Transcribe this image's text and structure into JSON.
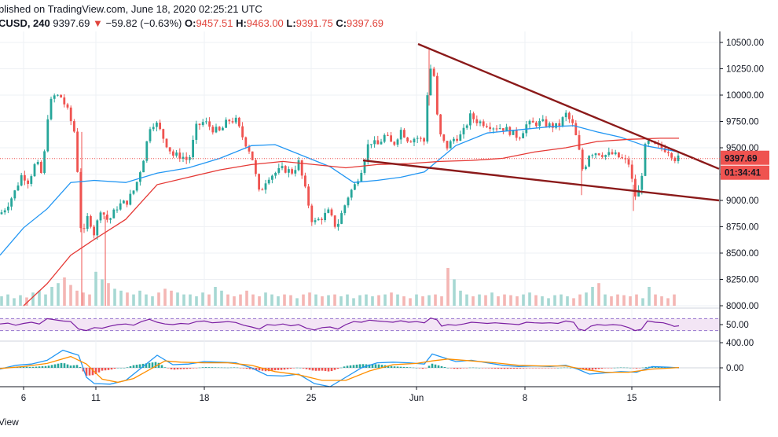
{
  "header": {
    "published": "blished on TradingView.com, June 18, 2020 02:25:21 UTC",
    "symbol": "CUSD, 240",
    "last": "9397.69",
    "arrow": "▼",
    "change": "−59.82 (−0.63%)",
    "o_label": "O:",
    "o": "9457.51",
    "h_label": "H:",
    "h": "9463.00",
    "l_label": "L:",
    "l": "9391.75",
    "c_label": "C:",
    "c": "9397.69"
  },
  "footer": {
    "text": "View"
  },
  "colors": {
    "up": "#26a69a",
    "down": "#ef5350",
    "ma_fast": "#2196f3",
    "ma_slow": "#e53935",
    "trendline": "#8b1a1a",
    "rsi": "#7b1fa2",
    "macd": "#2196f3",
    "signal": "#ff8f00"
  },
  "chart_data": [
    {
      "type": "candlestick",
      "name": "price",
      "x_ticks": [
        "6",
        "11",
        "18",
        "25",
        "Jun",
        "8",
        "15"
      ],
      "y_ticks": [
        "10500.00",
        "10250.00",
        "10000.00",
        "9750.00",
        "9500.00",
        "9250.00",
        "9000.00",
        "8750.00",
        "8500.00",
        "8250.00",
        "8000.00"
      ],
      "ylim": [
        8000,
        10500
      ],
      "last_price_label": "9397.69",
      "countdown_label": "01:34:41",
      "path_points": [
        [
          0,
          8870
        ],
        [
          8,
          8940
        ],
        [
          18,
          9070
        ],
        [
          28,
          9250
        ],
        [
          36,
          9180
        ],
        [
          46,
          9370
        ],
        [
          54,
          9230
        ],
        [
          62,
          9900
        ],
        [
          70,
          10000
        ],
        [
          78,
          9980
        ],
        [
          86,
          9850
        ],
        [
          96,
          9620
        ],
        [
          104,
          8600
        ],
        [
          112,
          8860
        ],
        [
          120,
          8680
        ],
        [
          128,
          8920
        ],
        [
          138,
          8800
        ],
        [
          150,
          8950
        ],
        [
          162,
          8990
        ],
        [
          172,
          9120
        ],
        [
          182,
          9380
        ],
        [
          192,
          9740
        ],
        [
          200,
          9720
        ],
        [
          210,
          9560
        ],
        [
          220,
          9430
        ],
        [
          232,
          9420
        ],
        [
          240,
          9370
        ],
        [
          250,
          9700
        ],
        [
          260,
          9750
        ],
        [
          270,
          9680
        ],
        [
          280,
          9650
        ],
        [
          290,
          9760
        ],
        [
          300,
          9760
        ],
        [
          310,
          9580
        ],
        [
          320,
          9440
        ],
        [
          330,
          9060
        ],
        [
          340,
          9220
        ],
        [
          350,
          9260
        ],
        [
          360,
          9300
        ],
        [
          372,
          9270
        ],
        [
          380,
          9360
        ],
        [
          390,
          9050
        ],
        [
          398,
          8780
        ],
        [
          408,
          8830
        ],
        [
          418,
          8890
        ],
        [
          428,
          8740
        ],
        [
          436,
          8900
        ],
        [
          444,
          9060
        ],
        [
          452,
          9150
        ],
        [
          460,
          9300
        ],
        [
          470,
          9570
        ],
        [
          480,
          9520
        ],
        [
          490,
          9620
        ],
        [
          500,
          9520
        ],
        [
          510,
          9670
        ],
        [
          520,
          9570
        ],
        [
          530,
          9600
        ],
        [
          540,
          9560
        ],
        [
          546,
          10280
        ],
        [
          552,
          10200
        ],
        [
          558,
          9650
        ],
        [
          568,
          9500
        ],
        [
          578,
          9590
        ],
        [
          588,
          9620
        ],
        [
          598,
          9800
        ],
        [
          608,
          9750
        ],
        [
          618,
          9730
        ],
        [
          628,
          9700
        ],
        [
          640,
          9690
        ],
        [
          650,
          9650
        ],
        [
          660,
          9600
        ],
        [
          670,
          9720
        ],
        [
          680,
          9730
        ],
        [
          690,
          9740
        ],
        [
          700,
          9710
        ],
        [
          710,
          9700
        ],
        [
          720,
          9820
        ],
        [
          730,
          9700
        ],
        [
          736,
          9500
        ],
        [
          742,
          9270
        ],
        [
          750,
          9450
        ],
        [
          760,
          9460
        ],
        [
          770,
          9430
        ],
        [
          780,
          9440
        ],
        [
          790,
          9400
        ],
        [
          800,
          9350
        ],
        [
          808,
          9040
        ],
        [
          814,
          9100
        ],
        [
          822,
          9560
        ],
        [
          832,
          9520
        ],
        [
          842,
          9500
        ],
        [
          852,
          9470
        ],
        [
          858,
          9400
        ],
        [
          864,
          9398
        ]
      ],
      "ma_fast": [
        [
          0,
          8480
        ],
        [
          30,
          8740
        ],
        [
          60,
          8920
        ],
        [
          90,
          9170
        ],
        [
          120,
          9190
        ],
        [
          160,
          9170
        ],
        [
          200,
          9260
        ],
        [
          240,
          9310
        ],
        [
          280,
          9400
        ],
        [
          320,
          9520
        ],
        [
          350,
          9530
        ],
        [
          380,
          9440
        ],
        [
          420,
          9320
        ],
        [
          450,
          9170
        ],
        [
          480,
          9190
        ],
        [
          510,
          9220
        ],
        [
          540,
          9270
        ],
        [
          580,
          9520
        ],
        [
          620,
          9640
        ],
        [
          660,
          9670
        ],
        [
          700,
          9700
        ],
        [
          730,
          9710
        ],
        [
          760,
          9650
        ],
        [
          790,
          9600
        ],
        [
          820,
          9520
        ],
        [
          850,
          9480
        ],
        [
          864,
          9460
        ]
      ],
      "ma_slow": [
        [
          30,
          8000
        ],
        [
          60,
          8210
        ],
        [
          90,
          8480
        ],
        [
          120,
          8630
        ],
        [
          160,
          8820
        ],
        [
          200,
          9150
        ],
        [
          240,
          9220
        ],
        [
          280,
          9290
        ],
        [
          320,
          9340
        ],
        [
          360,
          9370
        ],
        [
          400,
          9340
        ],
        [
          440,
          9310
        ],
        [
          480,
          9340
        ],
        [
          520,
          9350
        ],
        [
          560,
          9370
        ],
        [
          600,
          9380
        ],
        [
          640,
          9400
        ],
        [
          680,
          9460
        ],
        [
          720,
          9500
        ],
        [
          760,
          9560
        ],
        [
          800,
          9580
        ],
        [
          840,
          9590
        ],
        [
          864,
          9590
        ]
      ],
      "trendlines": [
        {
          "from": [
            532,
            10485
          ],
          "to": [
            915,
            9300
          ]
        },
        {
          "from": [
            462,
            9380
          ],
          "to": [
            915,
            9000
          ]
        }
      ]
    },
    {
      "type": "bar",
      "name": "volume",
      "note": "relative heights 0-1",
      "volumes": [
        0.25,
        0.3,
        0.2,
        0.28,
        0.22,
        0.35,
        0.4,
        0.3,
        0.5,
        0.6,
        0.75,
        0.55,
        0.4,
        0.35,
        0.3,
        0.9,
        0.7,
        0.6,
        0.45,
        0.4,
        0.35,
        0.3,
        0.4,
        0.3,
        0.25,
        0.35,
        0.45,
        0.4,
        0.35,
        0.3,
        0.3,
        0.25,
        0.35,
        0.3,
        0.5,
        0.4,
        0.3,
        0.25,
        0.3,
        0.4,
        0.3,
        0.25,
        0.35,
        0.3,
        0.25,
        0.3,
        0.28,
        0.2,
        0.3,
        0.35,
        0.3,
        0.25,
        0.28,
        0.3,
        0.25,
        0.3,
        0.2,
        0.28,
        0.3,
        0.25,
        0.28,
        0.3,
        0.35,
        0.3,
        0.25,
        0.2,
        0.3,
        0.25,
        0.28,
        0.3,
        0.25,
        1.0,
        0.7,
        0.4,
        0.3,
        0.25,
        0.3,
        0.28,
        0.35,
        0.25,
        0.3,
        0.28,
        0.25,
        0.3,
        0.35,
        0.28,
        0.25,
        0.2,
        0.28,
        0.3,
        0.25,
        0.2,
        0.3,
        0.35,
        0.5,
        0.6,
        0.3,
        0.25,
        0.3,
        0.28,
        0.25,
        0.3,
        0.2,
        0.5,
        0.3,
        0.25,
        0.2,
        0.3,
        0.28,
        0.2
      ]
    },
    {
      "type": "line",
      "name": "rsi",
      "y_ticks": [
        "50.00"
      ],
      "band": [
        30,
        70
      ],
      "values": [
        [
          0,
          52
        ],
        [
          10,
          55
        ],
        [
          20,
          48
        ],
        [
          30,
          54
        ],
        [
          40,
          58
        ],
        [
          50,
          52
        ],
        [
          60,
          70
        ],
        [
          70,
          66
        ],
        [
          80,
          62
        ],
        [
          90,
          60
        ],
        [
          100,
          35
        ],
        [
          110,
          30
        ],
        [
          120,
          40
        ],
        [
          130,
          38
        ],
        [
          140,
          45
        ],
        [
          150,
          50
        ],
        [
          160,
          52
        ],
        [
          170,
          48
        ],
        [
          180,
          60
        ],
        [
          190,
          68
        ],
        [
          200,
          58
        ],
        [
          210,
          52
        ],
        [
          220,
          50
        ],
        [
          230,
          54
        ],
        [
          240,
          52
        ],
        [
          250,
          60
        ],
        [
          260,
          62
        ],
        [
          270,
          56
        ],
        [
          280,
          58
        ],
        [
          290,
          60
        ],
        [
          300,
          57
        ],
        [
          310,
          48
        ],
        [
          320,
          42
        ],
        [
          330,
          35
        ],
        [
          340,
          50
        ],
        [
          350,
          48
        ],
        [
          360,
          52
        ],
        [
          370,
          46
        ],
        [
          380,
          50
        ],
        [
          390,
          38
        ],
        [
          400,
          32
        ],
        [
          410,
          40
        ],
        [
          420,
          42
        ],
        [
          430,
          35
        ],
        [
          440,
          50
        ],
        [
          450,
          60
        ],
        [
          460,
          58
        ],
        [
          470,
          65
        ],
        [
          480,
          62
        ],
        [
          490,
          60
        ],
        [
          500,
          58
        ],
        [
          510,
          63
        ],
        [
          520,
          58
        ],
        [
          530,
          60
        ],
        [
          540,
          56
        ],
        [
          548,
          72
        ],
        [
          556,
          66
        ],
        [
          562,
          45
        ],
        [
          570,
          50
        ],
        [
          580,
          48
        ],
        [
          590,
          52
        ],
        [
          600,
          58
        ],
        [
          610,
          56
        ],
        [
          620,
          54
        ],
        [
          630,
          56
        ],
        [
          640,
          54
        ],
        [
          650,
          52
        ],
        [
          660,
          50
        ],
        [
          670,
          58
        ],
        [
          680,
          56
        ],
        [
          690,
          55
        ],
        [
          700,
          56
        ],
        [
          710,
          54
        ],
        [
          720,
          62
        ],
        [
          730,
          58
        ],
        [
          736,
          35
        ],
        [
          744,
          30
        ],
        [
          752,
          45
        ],
        [
          760,
          50
        ],
        [
          770,
          48
        ],
        [
          780,
          50
        ],
        [
          790,
          48
        ],
        [
          800,
          40
        ],
        [
          808,
          30
        ],
        [
          816,
          34
        ],
        [
          824,
          62
        ],
        [
          834,
          58
        ],
        [
          844,
          56
        ],
        [
          852,
          50
        ],
        [
          858,
          44
        ],
        [
          864,
          46
        ]
      ]
    },
    {
      "type": "line",
      "name": "macd",
      "y_ticks": [
        "400.00",
        "0.00"
      ],
      "macd": [
        [
          0,
          -20
        ],
        [
          20,
          40
        ],
        [
          40,
          60
        ],
        [
          60,
          120
        ],
        [
          80,
          280
        ],
        [
          100,
          200
        ],
        [
          110,
          -150
        ],
        [
          120,
          -250
        ],
        [
          140,
          -260
        ],
        [
          160,
          -200
        ],
        [
          180,
          0
        ],
        [
          200,
          200
        ],
        [
          220,
          50
        ],
        [
          240,
          60
        ],
        [
          260,
          100
        ],
        [
          280,
          90
        ],
        [
          300,
          80
        ],
        [
          320,
          0
        ],
        [
          340,
          -120
        ],
        [
          360,
          -130
        ],
        [
          380,
          -100
        ],
        [
          400,
          -250
        ],
        [
          420,
          -300
        ],
        [
          440,
          -150
        ],
        [
          460,
          0
        ],
        [
          480,
          80
        ],
        [
          500,
          90
        ],
        [
          520,
          80
        ],
        [
          540,
          60
        ],
        [
          550,
          220
        ],
        [
          560,
          180
        ],
        [
          580,
          100
        ],
        [
          600,
          120
        ],
        [
          620,
          80
        ],
        [
          640,
          40
        ],
        [
          660,
          20
        ],
        [
          680,
          30
        ],
        [
          700,
          20
        ],
        [
          720,
          40
        ],
        [
          735,
          -20
        ],
        [
          750,
          -100
        ],
        [
          770,
          -80
        ],
        [
          790,
          -60
        ],
        [
          810,
          -70
        ],
        [
          830,
          20
        ],
        [
          850,
          10
        ],
        [
          864,
          0
        ]
      ],
      "signal": [
        [
          0,
          -10
        ],
        [
          30,
          20
        ],
        [
          60,
          70
        ],
        [
          90,
          180
        ],
        [
          110,
          60
        ],
        [
          130,
          -180
        ],
        [
          150,
          -230
        ],
        [
          170,
          -170
        ],
        [
          190,
          -30
        ],
        [
          210,
          110
        ],
        [
          230,
          90
        ],
        [
          260,
          80
        ],
        [
          290,
          80
        ],
        [
          320,
          40
        ],
        [
          350,
          -60
        ],
        [
          380,
          -110
        ],
        [
          410,
          -200
        ],
        [
          440,
          -200
        ],
        [
          470,
          -50
        ],
        [
          500,
          50
        ],
        [
          530,
          70
        ],
        [
          550,
          110
        ],
        [
          570,
          140
        ],
        [
          600,
          110
        ],
        [
          630,
          80
        ],
        [
          660,
          40
        ],
        [
          690,
          30
        ],
        [
          720,
          30
        ],
        [
          745,
          -30
        ],
        [
          770,
          -70
        ],
        [
          800,
          -70
        ],
        [
          830,
          -20
        ],
        [
          864,
          5
        ]
      ],
      "histogram_scale": 0.6
    }
  ]
}
